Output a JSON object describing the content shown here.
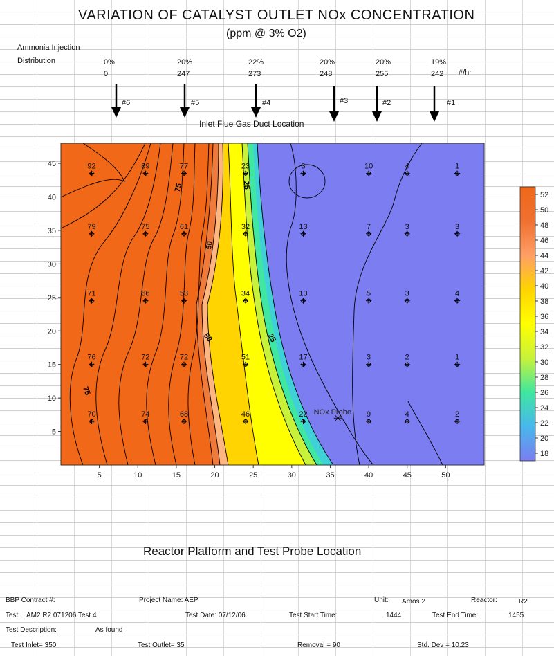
{
  "header": {
    "title": "VARIATION OF CATALYST OUTLET NOx CONCENTRATION",
    "subtitle": "(ppm @ 3% O2)"
  },
  "injection": {
    "label_line1": "Ammonia Injection",
    "label_line2": "Distribution",
    "unit": "#/hr",
    "percents": [
      "0%",
      "20%",
      "22%",
      "20%",
      "20%",
      "19%"
    ],
    "rates": [
      "0",
      "247",
      "273",
      "248",
      "255",
      "242"
    ],
    "nozzles": [
      "#6",
      "#5",
      "#4",
      "#3",
      "#2",
      "#1"
    ],
    "duct_label": "Inlet Flue Gas Duct Location"
  },
  "chart_data": {
    "type": "heatmap",
    "title": "VARIATION OF CATALYST OUTLET NOx CONCENTRATION",
    "subtitle": "(ppm @ 3% O2)",
    "xlabel": "Reactor Platform and Test Probe Location",
    "ylabel": "",
    "xlim": [
      0,
      55
    ],
    "ylim": [
      0,
      48
    ],
    "x_ticks": [
      5,
      10,
      15,
      20,
      25,
      30,
      35,
      40,
      45,
      50
    ],
    "y_ticks": [
      5,
      10,
      15,
      20,
      25,
      30,
      35,
      40,
      45
    ],
    "colorbar": {
      "min": 17,
      "max": 53,
      "ticks": [
        18,
        20,
        22,
        24,
        26,
        28,
        30,
        32,
        34,
        36,
        38,
        40,
        42,
        44,
        46,
        48,
        50,
        52
      ],
      "colors": [
        "#7b7df0",
        "#48b8ee",
        "#3fe7a0",
        "#c8f23a",
        "#ffff00",
        "#ffd400",
        "#ff9f66",
        "#f07030",
        "#f06818"
      ]
    },
    "contour_labels": [
      "75",
      "75",
      "50",
      "50",
      "25",
      "25"
    ],
    "probe_label": "NOx Probe",
    "points": [
      {
        "x": 4,
        "y": 43.5,
        "value": 92
      },
      {
        "x": 11,
        "y": 43.5,
        "value": 89
      },
      {
        "x": 16,
        "y": 43.5,
        "value": 77
      },
      {
        "x": 24,
        "y": 43.5,
        "value": 23
      },
      {
        "x": 31.5,
        "y": 43.5,
        "value": 3
      },
      {
        "x": 40,
        "y": 43.5,
        "value": 10
      },
      {
        "x": 45,
        "y": 43.5,
        "value": 4
      },
      {
        "x": 51.5,
        "y": 43.5,
        "value": 1
      },
      {
        "x": 4,
        "y": 34.5,
        "value": 79
      },
      {
        "x": 11,
        "y": 34.5,
        "value": 75
      },
      {
        "x": 16,
        "y": 34.5,
        "value": 61
      },
      {
        "x": 24,
        "y": 34.5,
        "value": 32
      },
      {
        "x": 31.5,
        "y": 34.5,
        "value": 13
      },
      {
        "x": 40,
        "y": 34.5,
        "value": 7
      },
      {
        "x": 45,
        "y": 34.5,
        "value": 3
      },
      {
        "x": 51.5,
        "y": 34.5,
        "value": 3
      },
      {
        "x": 4,
        "y": 24.5,
        "value": 71
      },
      {
        "x": 11,
        "y": 24.5,
        "value": 66
      },
      {
        "x": 16,
        "y": 24.5,
        "value": 53
      },
      {
        "x": 24,
        "y": 24.5,
        "value": 34
      },
      {
        "x": 31.5,
        "y": 24.5,
        "value": 13
      },
      {
        "x": 40,
        "y": 24.5,
        "value": 5
      },
      {
        "x": 45,
        "y": 24.5,
        "value": 3
      },
      {
        "x": 51.5,
        "y": 24.5,
        "value": 4
      },
      {
        "x": 4,
        "y": 15,
        "value": 76
      },
      {
        "x": 11,
        "y": 15,
        "value": 72
      },
      {
        "x": 16,
        "y": 15,
        "value": 72
      },
      {
        "x": 24,
        "y": 15,
        "value": 51
      },
      {
        "x": 31.5,
        "y": 15,
        "value": 17
      },
      {
        "x": 40,
        "y": 15,
        "value": 3
      },
      {
        "x": 45,
        "y": 15,
        "value": 2
      },
      {
        "x": 51.5,
        "y": 15,
        "value": 1
      },
      {
        "x": 4,
        "y": 6.5,
        "value": 70
      },
      {
        "x": 11,
        "y": 6.5,
        "value": 74
      },
      {
        "x": 16,
        "y": 6.5,
        "value": 68
      },
      {
        "x": 24,
        "y": 6.5,
        "value": 46
      },
      {
        "x": 31.5,
        "y": 6.5,
        "value": 22
      },
      {
        "x": 40,
        "y": 6.5,
        "value": 9
      },
      {
        "x": 45,
        "y": 6.5,
        "value": 4
      },
      {
        "x": 51.5,
        "y": 6.5,
        "value": 2
      }
    ],
    "probe": {
      "x": 36,
      "y": 7
    }
  },
  "footer": {
    "contract_label": "BBP Contract #:",
    "project_label": "Project Name: AEP",
    "unit_label": "Unit:",
    "unit_value": "Amos 2",
    "reactor_label": "Reactor:",
    "reactor_value": "R2",
    "test_label": "Test",
    "test_value": "AM2 R2 071206 Test 4",
    "test_date": "Test Date: 07/12/06",
    "start_label": "Test Start Time:",
    "start_value": "1444",
    "end_label": "Test End Time:",
    "end_value": "1455",
    "desc_label": "Test Description:",
    "desc_value": "As found",
    "inlet": "Test Inlet= 350",
    "outlet": "Test Outlet= 35",
    "removal": "Removal = 90",
    "stddev": "Std. Dev = 10.23"
  }
}
